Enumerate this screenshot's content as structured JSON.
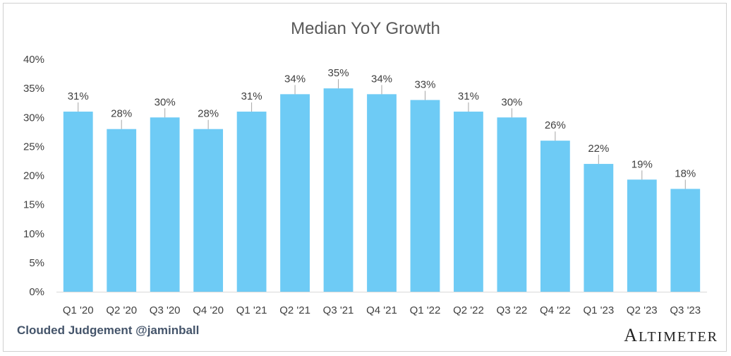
{
  "chart_data": {
    "type": "bar",
    "title": "Median YoY Growth",
    "xlabel": "",
    "ylabel": "",
    "ylim": [
      0,
      40
    ],
    "yticks": [
      "0%",
      "5%",
      "10%",
      "15%",
      "20%",
      "25%",
      "30%",
      "35%",
      "40%"
    ],
    "grid": false,
    "legend": "none",
    "bar_color": "#6ecbf5",
    "categories": [
      "Q1 '20",
      "Q2 '20",
      "Q3 '20",
      "Q4 '20",
      "Q1 '21",
      "Q2 '21",
      "Q3 '21",
      "Q4 '21",
      "Q1 '22",
      "Q2 '22",
      "Q3 '22",
      "Q4 '22",
      "Q1 '23",
      "Q2 '23",
      "Q3 '23"
    ],
    "values": [
      31,
      28,
      30,
      28,
      31,
      34,
      35,
      34,
      33,
      31,
      30,
      26,
      22,
      19.3,
      17.7
    ],
    "data_labels": [
      "31%",
      "28%",
      "30%",
      "28%",
      "31%",
      "34%",
      "35%",
      "34%",
      "33%",
      "31%",
      "30%",
      "26%",
      "22%",
      "19%",
      "18%"
    ]
  },
  "footer": {
    "credit": "Clouded Judgement @jaminball",
    "brand": "Altimeter"
  }
}
